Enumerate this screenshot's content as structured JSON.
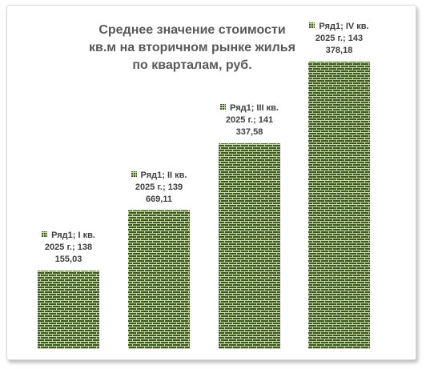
{
  "chart_data": {
    "type": "bar",
    "title": "Среднее значение стоимости\nкв.м на вторичном рынке жилья\nпо кварталам, руб.",
    "xlabel": "",
    "ylabel": "",
    "categories": [
      "I кв. 2025 г.",
      "II кв. 2025 г.",
      "III кв. 2025 г.",
      "IV кв. 2025 г."
    ],
    "series": [
      {
        "name": "Ряд1",
        "values": [
          138155.03,
          139669.11,
          141337.58,
          143378.18
        ]
      }
    ],
    "value_labels": [
      [
        "Ряд1; I кв.",
        "2025 г.; 138",
        "155,03"
      ],
      [
        "Ряд1; II кв.",
        "2025 г.; 139",
        "669,11"
      ],
      [
        "Ряд1; III кв.",
        "2025 г.; 141",
        "337,58"
      ],
      [
        "Ряд1; IV кв.",
        "2025 г.; 143",
        "378,18"
      ]
    ],
    "ylim": [
      136200,
      143378.18
    ],
    "grid": false,
    "legend": "none",
    "colors": {
      "bar_fill": "#3d5a1c",
      "brick_mortar": "#c6d7b0",
      "title": "#595959",
      "label_text": "#404040"
    }
  }
}
